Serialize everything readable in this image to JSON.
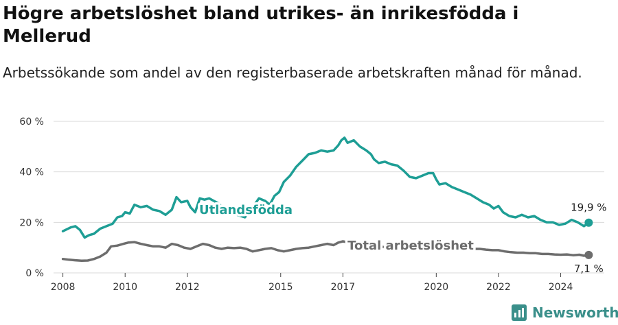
{
  "title": "Högre arbetslöshet bland utrikes- än inrikesfödda i Mellerud",
  "subtitle": "Arbetssökande som andel av den registerbaserade arbetskraften månad för månad.",
  "brand": {
    "name": "Newsworthy",
    "color": "#3a8f8a"
  },
  "chart_data": {
    "type": "line",
    "title": "Högre arbetslöshet bland utrikes- än inrikesfödda i Mellerud",
    "subtitle": "Arbetssökande som andel av den registerbaserade arbetskraften månad för månad.",
    "xlabel": "",
    "ylabel": "",
    "ylim": [
      0,
      60
    ],
    "xlim": [
      2007.7,
      2025.4
    ],
    "yticks": [
      0,
      20,
      40,
      60
    ],
    "ytick_labels": [
      "0 %",
      "20 %",
      "40 %",
      "60 %"
    ],
    "xticks": [
      2008,
      2010,
      2012,
      2015,
      2017,
      2020,
      2022,
      2024
    ],
    "xtick_labels": [
      "2008",
      "2010",
      "2012",
      "2015",
      "2017",
      "2020",
      "2022",
      "2024"
    ],
    "grid": true,
    "legend": "direct labels on lines",
    "series": [
      {
        "name": "Utlandsfödda",
        "color": "#1e9e95",
        "end_label": "19,9 %",
        "points": [
          [
            2008.0,
            16.5
          ],
          [
            2008.25,
            18.0
          ],
          [
            2008.4,
            18.5
          ],
          [
            2008.55,
            17.0
          ],
          [
            2008.7,
            14.0
          ],
          [
            2008.85,
            15.0
          ],
          [
            2009.0,
            15.5
          ],
          [
            2009.2,
            17.5
          ],
          [
            2009.4,
            18.5
          ],
          [
            2009.6,
            19.5
          ],
          [
            2009.75,
            22.0
          ],
          [
            2009.9,
            22.5
          ],
          [
            2010.0,
            24.0
          ],
          [
            2010.15,
            23.5
          ],
          [
            2010.3,
            27.0
          ],
          [
            2010.5,
            26.0
          ],
          [
            2010.7,
            26.5
          ],
          [
            2010.9,
            25.0
          ],
          [
            2011.1,
            24.5
          ],
          [
            2011.3,
            23.0
          ],
          [
            2011.5,
            25.0
          ],
          [
            2011.65,
            30.0
          ],
          [
            2011.8,
            28.0
          ],
          [
            2012.0,
            28.5
          ],
          [
            2012.1,
            26.0
          ],
          [
            2012.25,
            24.0
          ],
          [
            2012.4,
            29.5
          ],
          [
            2012.55,
            29.0
          ],
          [
            2012.7,
            29.5
          ],
          [
            2012.85,
            28.5
          ],
          [
            2013.0,
            27.5
          ],
          [
            2013.2,
            25.0
          ],
          [
            2013.4,
            24.5
          ],
          [
            2013.6,
            23.0
          ],
          [
            2013.85,
            22.0
          ],
          [
            2014.1,
            26.0
          ],
          [
            2014.3,
            29.5
          ],
          [
            2014.5,
            28.5
          ],
          [
            2014.65,
            27.0
          ],
          [
            2014.8,
            30.5
          ],
          [
            2014.95,
            32.0
          ],
          [
            2015.1,
            36.0
          ],
          [
            2015.3,
            38.5
          ],
          [
            2015.5,
            42.0
          ],
          [
            2015.7,
            44.5
          ],
          [
            2015.9,
            47.0
          ],
          [
            2016.1,
            47.5
          ],
          [
            2016.3,
            48.5
          ],
          [
            2016.5,
            48.0
          ],
          [
            2016.7,
            48.5
          ],
          [
            2016.85,
            50.5
          ],
          [
            2016.95,
            52.5
          ],
          [
            2017.05,
            53.5
          ],
          [
            2017.15,
            51.5
          ],
          [
            2017.35,
            52.5
          ],
          [
            2017.55,
            50.0
          ],
          [
            2017.75,
            48.5
          ],
          [
            2017.9,
            47.0
          ],
          [
            2018.0,
            45.0
          ],
          [
            2018.15,
            43.5
          ],
          [
            2018.35,
            44.0
          ],
          [
            2018.55,
            43.0
          ],
          [
            2018.75,
            42.5
          ],
          [
            2018.95,
            40.5
          ],
          [
            2019.15,
            38.0
          ],
          [
            2019.35,
            37.5
          ],
          [
            2019.55,
            38.5
          ],
          [
            2019.75,
            39.5
          ],
          [
            2019.9,
            39.5
          ],
          [
            2020.0,
            37.0
          ],
          [
            2020.1,
            35.0
          ],
          [
            2020.3,
            35.5
          ],
          [
            2020.5,
            34.0
          ],
          [
            2020.7,
            33.0
          ],
          [
            2020.9,
            32.0
          ],
          [
            2021.1,
            31.0
          ],
          [
            2021.3,
            29.5
          ],
          [
            2021.5,
            28.0
          ],
          [
            2021.7,
            27.0
          ],
          [
            2021.85,
            25.5
          ],
          [
            2022.0,
            26.5
          ],
          [
            2022.15,
            24.0
          ],
          [
            2022.35,
            22.5
          ],
          [
            2022.55,
            22.0
          ],
          [
            2022.75,
            23.0
          ],
          [
            2022.95,
            22.0
          ],
          [
            2023.15,
            22.5
          ],
          [
            2023.35,
            21.0
          ],
          [
            2023.55,
            20.0
          ],
          [
            2023.75,
            20.0
          ],
          [
            2023.95,
            19.0
          ],
          [
            2024.15,
            19.5
          ],
          [
            2024.35,
            21.0
          ],
          [
            2024.55,
            20.0
          ],
          [
            2024.75,
            18.5
          ],
          [
            2024.9,
            19.9
          ]
        ]
      },
      {
        "name": "Total arbetslöshet",
        "color": "#6d6d6d",
        "end_label": "7,1 %",
        "points": [
          [
            2008.0,
            5.5
          ],
          [
            2008.2,
            5.2
          ],
          [
            2008.4,
            5.0
          ],
          [
            2008.6,
            4.8
          ],
          [
            2008.8,
            4.9
          ],
          [
            2009.0,
            5.5
          ],
          [
            2009.2,
            6.5
          ],
          [
            2009.4,
            8.0
          ],
          [
            2009.55,
            10.5
          ],
          [
            2009.75,
            10.8
          ],
          [
            2009.95,
            11.5
          ],
          [
            2010.1,
            12.0
          ],
          [
            2010.3,
            12.2
          ],
          [
            2010.5,
            11.5
          ],
          [
            2010.7,
            11.0
          ],
          [
            2010.9,
            10.5
          ],
          [
            2011.1,
            10.5
          ],
          [
            2011.3,
            10.0
          ],
          [
            2011.5,
            11.5
          ],
          [
            2011.7,
            11.0
          ],
          [
            2011.9,
            10.0
          ],
          [
            2012.1,
            9.5
          ],
          [
            2012.3,
            10.5
          ],
          [
            2012.5,
            11.5
          ],
          [
            2012.7,
            11.0
          ],
          [
            2012.9,
            10.0
          ],
          [
            2013.1,
            9.5
          ],
          [
            2013.3,
            10.0
          ],
          [
            2013.5,
            9.8
          ],
          [
            2013.7,
            10.0
          ],
          [
            2013.9,
            9.5
          ],
          [
            2014.1,
            8.5
          ],
          [
            2014.3,
            9.0
          ],
          [
            2014.5,
            9.5
          ],
          [
            2014.7,
            9.8
          ],
          [
            2014.9,
            9.0
          ],
          [
            2015.1,
            8.5
          ],
          [
            2015.3,
            9.0
          ],
          [
            2015.5,
            9.5
          ],
          [
            2015.7,
            9.8
          ],
          [
            2015.9,
            10.0
          ],
          [
            2016.1,
            10.5
          ],
          [
            2016.3,
            11.0
          ],
          [
            2016.5,
            11.5
          ],
          [
            2016.7,
            11.0
          ],
          [
            2016.85,
            12.0
          ],
          [
            2017.0,
            12.5
          ],
          [
            2017.2,
            12.0
          ],
          [
            2017.4,
            11.5
          ],
          [
            2017.6,
            11.0
          ],
          [
            2017.8,
            11.0
          ],
          [
            2018.0,
            10.5
          ],
          [
            2018.2,
            10.5
          ],
          [
            2018.4,
            10.0
          ],
          [
            2018.6,
            10.0
          ],
          [
            2018.8,
            9.8
          ],
          [
            2019.0,
            10.0
          ],
          [
            2019.2,
            10.0
          ],
          [
            2019.4,
            10.5
          ],
          [
            2019.6,
            10.0
          ],
          [
            2019.8,
            10.0
          ],
          [
            2020.0,
            11.0
          ],
          [
            2020.2,
            11.5
          ],
          [
            2020.4,
            11.0
          ],
          [
            2020.6,
            10.5
          ],
          [
            2020.8,
            10.0
          ],
          [
            2021.0,
            9.8
          ],
          [
            2021.2,
            9.5
          ],
          [
            2021.4,
            9.5
          ],
          [
            2021.6,
            9.2
          ],
          [
            2021.8,
            9.0
          ],
          [
            2022.0,
            9.0
          ],
          [
            2022.2,
            8.5
          ],
          [
            2022.4,
            8.2
          ],
          [
            2022.6,
            8.0
          ],
          [
            2022.8,
            8.0
          ],
          [
            2023.0,
            7.8
          ],
          [
            2023.2,
            7.8
          ],
          [
            2023.4,
            7.5
          ],
          [
            2023.6,
            7.5
          ],
          [
            2023.8,
            7.3
          ],
          [
            2024.0,
            7.2
          ],
          [
            2024.2,
            7.3
          ],
          [
            2024.4,
            7.0
          ],
          [
            2024.6,
            7.2
          ],
          [
            2024.75,
            6.8
          ],
          [
            2024.9,
            7.1
          ]
        ]
      }
    ]
  }
}
